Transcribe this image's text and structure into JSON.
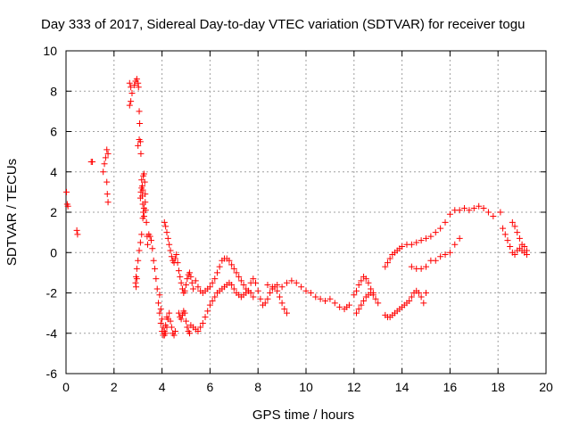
{
  "chart_data": {
    "type": "scatter",
    "title": "Day 333 of 2017, Sidereal Day-to-day VTEC variation (SDTVAR) for receiver togu",
    "xlabel": "GPS time / hours",
    "ylabel": "SDTVAR / TECUs",
    "xlim": [
      0,
      20
    ],
    "ylim": [
      -6,
      10
    ],
    "xticks": [
      0,
      2,
      4,
      6,
      8,
      10,
      12,
      14,
      16,
      18,
      20
    ],
    "yticks": [
      -6,
      -4,
      -2,
      0,
      2,
      4,
      6,
      8,
      10
    ],
    "grid": true,
    "marker": "+",
    "color": "#ff0000",
    "series": [
      {
        "name": "SDTVAR",
        "x": [
          0.02,
          0.05,
          0.08,
          0.45,
          0.48,
          1.05,
          1.1,
          1.55,
          1.6,
          1.65,
          1.7,
          1.75,
          1.7,
          1.72,
          1.75,
          2.65,
          2.7,
          2.75,
          2.7,
          2.65,
          2.85,
          2.9,
          2.95,
          3.0,
          3.02,
          3.05,
          3.07,
          3.05,
          3.0,
          3.1,
          3.12,
          3.15,
          3.18,
          3.2,
          3.22,
          3.25,
          3.28,
          3.3,
          3.32,
          3.35,
          3.38,
          3.4,
          3.3,
          3.25,
          3.2,
          3.15,
          3.1,
          3.05,
          3.0,
          2.95,
          2.92,
          2.9,
          2.92,
          2.95,
          3.1,
          3.12,
          3.15,
          3.18,
          3.2,
          3.22,
          3.25,
          3.45,
          3.5,
          3.55,
          3.6,
          3.65,
          3.7,
          3.75,
          3.8,
          3.85,
          3.9,
          3.95,
          4.0,
          4.05,
          4.1,
          4.15,
          4.2,
          3.9,
          3.95,
          4.0,
          4.05,
          4.1,
          4.15,
          4.2,
          4.25,
          4.3,
          4.35,
          4.4,
          4.45,
          4.5,
          4.55,
          4.1,
          4.15,
          4.2,
          4.25,
          4.3,
          4.35,
          4.4,
          4.45,
          4.5,
          4.55,
          4.6,
          4.65,
          4.7,
          4.75,
          4.8,
          4.85,
          4.9,
          4.95,
          5.0,
          5.05,
          5.1,
          5.15,
          5.2,
          5.25,
          5.3,
          4.7,
          4.75,
          4.8,
          4.85,
          4.9,
          4.95,
          5.0,
          5.05,
          5.1,
          5.15,
          5.2,
          5.3,
          5.4,
          5.5,
          5.6,
          5.7,
          5.8,
          5.9,
          6.0,
          6.1,
          6.2,
          6.3,
          6.4,
          6.5,
          6.6,
          6.7,
          6.8,
          6.9,
          7.0,
          7.1,
          7.2,
          7.3,
          7.4,
          7.5,
          7.6,
          7.7,
          7.8,
          5.4,
          5.5,
          5.6,
          5.7,
          5.8,
          5.9,
          6.0,
          6.1,
          6.2,
          6.3,
          6.4,
          6.5,
          6.6,
          6.7,
          6.8,
          6.9,
          7.0,
          7.1,
          7.2,
          7.3,
          7.4,
          7.5,
          7.6,
          7.7,
          7.8,
          7.9,
          8.0,
          8.1,
          8.2,
          8.3,
          8.4,
          8.5,
          8.6,
          8.7,
          8.8,
          8.9,
          9.0,
          9.1,
          9.2,
          8.4,
          8.6,
          8.8,
          9.0,
          9.2,
          9.4,
          9.6,
          9.8,
          10.0,
          10.2,
          10.4,
          10.6,
          10.8,
          11.0,
          11.2,
          11.4,
          11.6,
          11.7,
          11.8,
          12.0,
          12.1,
          12.2,
          12.3,
          12.4,
          12.5,
          12.6,
          12.7,
          12.8,
          12.9,
          13.0,
          12.1,
          12.2,
          12.3,
          12.4,
          12.5,
          12.6,
          12.7,
          12.8,
          13.3,
          13.4,
          13.5,
          13.6,
          13.7,
          13.8,
          13.9,
          14.0,
          14.1,
          14.2,
          14.3,
          14.4,
          14.5,
          14.6,
          14.7,
          14.8,
          14.9,
          15.0,
          13.3,
          13.4,
          13.5,
          13.6,
          13.7,
          13.8,
          13.9,
          14.0,
          14.2,
          14.4,
          14.6,
          14.8,
          15.0,
          15.2,
          15.4,
          15.6,
          15.8,
          16.0,
          16.2,
          16.4,
          16.6,
          16.8,
          17.0,
          17.2,
          17.4,
          17.6,
          17.8,
          14.4,
          14.6,
          14.8,
          15.0,
          15.2,
          15.4,
          15.6,
          15.8,
          16.0,
          16.2,
          16.4,
          18.1,
          18.2,
          18.3,
          18.4,
          18.5,
          18.6,
          18.7,
          18.8,
          18.9,
          19.0,
          19.1,
          19.2,
          18.6,
          18.7,
          18.8,
          18.9,
          19.0,
          19.1,
          19.2
        ],
        "y": [
          3.0,
          2.4,
          2.3,
          1.1,
          0.9,
          4.5,
          4.5,
          4.0,
          4.4,
          4.7,
          5.1,
          4.9,
          3.5,
          2.9,
          2.5,
          8.4,
          8.2,
          7.9,
          7.5,
          7.3,
          8.3,
          8.5,
          8.6,
          8.4,
          8.2,
          7.0,
          6.4,
          5.6,
          5.3,
          5.5,
          4.9,
          3.6,
          3.3,
          3.1,
          3.8,
          3.9,
          3.5,
          2.9,
          2.1,
          1.5,
          0.8,
          0.4,
          2.5,
          2.2,
          1.7,
          0.9,
          0.5,
          0.1,
          -0.4,
          -0.8,
          -1.2,
          -1.5,
          -1.7,
          -1.3,
          2.7,
          3.0,
          3.2,
          2.8,
          2.4,
          2.0,
          1.8,
          0.9,
          0.8,
          0.6,
          0.2,
          -0.4,
          -0.8,
          -1.3,
          -1.8,
          -2.5,
          -3.0,
          -3.5,
          -3.9,
          -4.1,
          -3.9,
          -3.6,
          -3.2,
          -2.1,
          -2.8,
          -3.3,
          -3.7,
          -4.1,
          -4.0,
          -3.7,
          -3.3,
          -3.0,
          -3.4,
          -3.7,
          -4.0,
          -4.1,
          -3.9,
          1.5,
          1.3,
          1.0,
          0.7,
          0.4,
          0.1,
          -0.2,
          -0.4,
          -0.5,
          -0.3,
          -0.1,
          -0.5,
          -0.9,
          -1.2,
          -1.5,
          -1.8,
          -2.0,
          -1.9,
          -1.6,
          -1.3,
          -1.1,
          -1.0,
          -1.2,
          -1.5,
          -1.8,
          -3.0,
          -3.2,
          -3.3,
          -3.1,
          -2.9,
          -3.0,
          -3.4,
          -3.7,
          -3.9,
          -4.0,
          -3.6,
          -3.7,
          -3.8,
          -3.9,
          -3.7,
          -3.5,
          -3.2,
          -2.9,
          -2.6,
          -2.4,
          -2.2,
          -2.0,
          -1.9,
          -1.8,
          -1.7,
          -1.6,
          -1.5,
          -1.6,
          -1.8,
          -2.0,
          -2.1,
          -2.2,
          -2.1,
          -2.0,
          -1.9,
          -2.0,
          -2.2,
          -1.4,
          -1.7,
          -1.9,
          -2.0,
          -1.9,
          -1.8,
          -1.7,
          -1.5,
          -1.3,
          -1.0,
          -0.7,
          -0.4,
          -0.3,
          -0.3,
          -0.4,
          -0.6,
          -0.8,
          -1.0,
          -1.2,
          -1.4,
          -1.6,
          -1.8,
          -1.9,
          -1.5,
          -1.3,
          -1.5,
          -1.9,
          -2.3,
          -2.6,
          -2.5,
          -2.3,
          -2.0,
          -1.8,
          -1.7,
          -1.9,
          -2.2,
          -2.5,
          -2.8,
          -3.0,
          -1.6,
          -1.7,
          -1.6,
          -1.7,
          -1.5,
          -1.4,
          -1.5,
          -1.7,
          -1.9,
          -2.0,
          -2.2,
          -2.3,
          -2.4,
          -2.3,
          -2.5,
          -2.7,
          -2.8,
          -2.7,
          -2.6,
          -2.1,
          -1.9,
          -1.6,
          -1.4,
          -1.2,
          -1.3,
          -1.5,
          -1.8,
          -2.1,
          -2.3,
          -2.5,
          -3.0,
          -2.8,
          -2.6,
          -2.4,
          -2.2,
          -2.1,
          -2.0,
          -2.0,
          -3.1,
          -3.2,
          -3.2,
          -3.1,
          -3.0,
          -2.9,
          -2.8,
          -2.7,
          -2.6,
          -2.5,
          -2.4,
          -2.2,
          -2.0,
          -1.9,
          -2.0,
          -2.2,
          -2.5,
          -2.0,
          -0.7,
          -0.5,
          -0.3,
          -0.1,
          0.0,
          0.1,
          0.2,
          0.3,
          0.4,
          0.4,
          0.5,
          0.6,
          0.7,
          0.8,
          1.0,
          1.2,
          1.5,
          1.9,
          2.1,
          2.1,
          2.2,
          2.1,
          2.2,
          2.3,
          2.2,
          2.0,
          1.8,
          -0.7,
          -0.8,
          -0.8,
          -0.7,
          -0.4,
          -0.4,
          -0.2,
          -0.1,
          0.0,
          0.4,
          0.7,
          2.0,
          1.2,
          0.9,
          0.6,
          0.3,
          0.0,
          -0.1,
          0.1,
          0.2,
          0.1,
          0.0,
          -0.1,
          1.5,
          1.3,
          1.0,
          0.7,
          0.4,
          0.3,
          0.1
        ]
      }
    ]
  }
}
